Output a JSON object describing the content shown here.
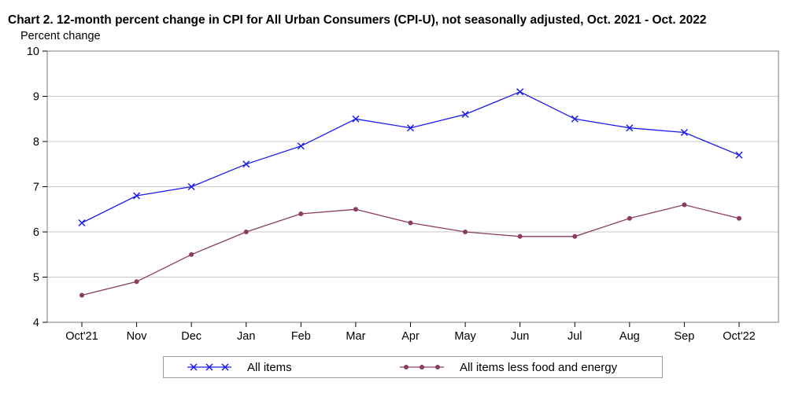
{
  "chart_data": {
    "type": "line",
    "title": "Chart 2. 12-month percent change in CPI for All Urban Consumers (CPI-U), not seasonally adjusted, Oct. 2021 - Oct. 2022",
    "ylabel": "Percent change",
    "xlabel": "",
    "categories": [
      "Oct'21",
      "Nov",
      "Dec",
      "Jan",
      "Feb",
      "Mar",
      "Apr",
      "May",
      "Jun",
      "Jul",
      "Aug",
      "Sep",
      "Oct'22"
    ],
    "ylim": [
      4,
      10
    ],
    "yticks": [
      "4",
      "5",
      "6",
      "7",
      "8",
      "9",
      "10"
    ],
    "grid": true,
    "legend_position": "bottom",
    "series": [
      {
        "name": "All items",
        "color": "#1a1aee",
        "marker": "x",
        "values": [
          6.2,
          6.8,
          7.0,
          7.5,
          7.9,
          8.5,
          8.3,
          8.6,
          9.1,
          8.5,
          8.3,
          8.2,
          7.7
        ]
      },
      {
        "name": "All items less food and energy",
        "color": "#8b3a62",
        "marker": "dot",
        "values": [
          4.6,
          4.9,
          5.5,
          6.0,
          6.4,
          6.5,
          6.2,
          6.0,
          5.9,
          5.9,
          6.3,
          6.6,
          6.3
        ]
      }
    ]
  }
}
